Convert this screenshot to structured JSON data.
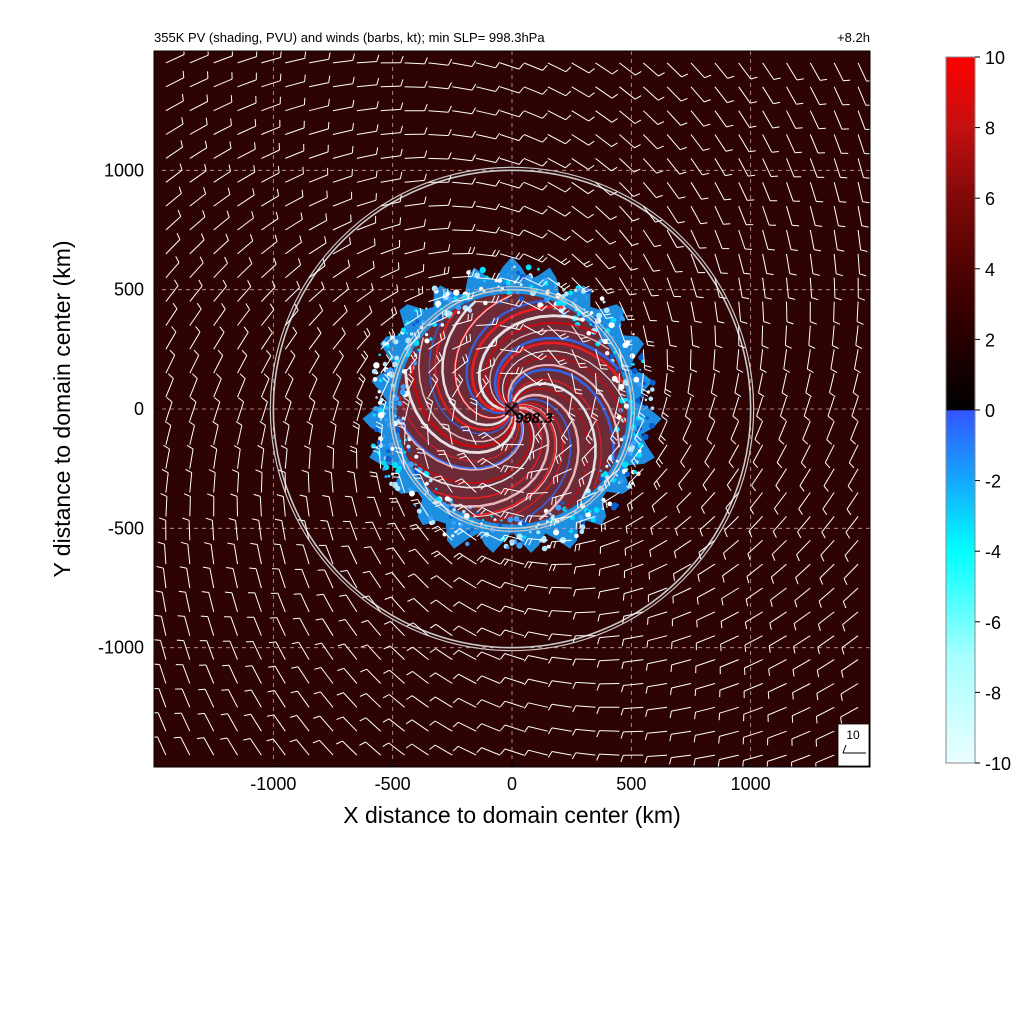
{
  "chart_data": {
    "type": "heatmap",
    "title": "355K PV (shading, PVU) and winds (barbs, kt); min SLP=  998.3hPa",
    "forecast_time": "+8.2h",
    "xlabel": "X distance to domain center (km)",
    "ylabel": "Y distance to domain center (km)",
    "xlim": [
      -1500,
      1500
    ],
    "ylim": [
      -1500,
      1500
    ],
    "x_ticks": [
      -1000,
      -500,
      0,
      500,
      1000
    ],
    "y_ticks": [
      -1000,
      -500,
      0,
      500,
      1000
    ],
    "x_tick_labels": [
      "-1000",
      "-500",
      "0",
      "500",
      "1000"
    ],
    "y_tick_labels": [
      "1000",
      "500",
      "0",
      "-500",
      "-1000"
    ],
    "grid": true,
    "colorbar": {
      "range": [
        -10,
        10
      ],
      "ticks": [
        "10",
        "8",
        "6",
        "4",
        "2",
        "0",
        "-2",
        "-4",
        "-6",
        "-8",
        "-10"
      ],
      "colors": {
        "positive": [
          "#2a0000",
          "#6a0a0a",
          "#b31212",
          "#ff0000"
        ],
        "zero": "#000000",
        "negative": [
          "#3355ff",
          "#19a7ff",
          "#00ffff",
          "#e8ffff"
        ]
      }
    },
    "background_pv_color": "#2e0303",
    "center_marker": {
      "x": 0,
      "y": 0,
      "label": "998.3"
    },
    "range_rings_km": [
      500,
      1000
    ],
    "core_radius_km": 620,
    "barb_reference": {
      "label": "10"
    }
  }
}
